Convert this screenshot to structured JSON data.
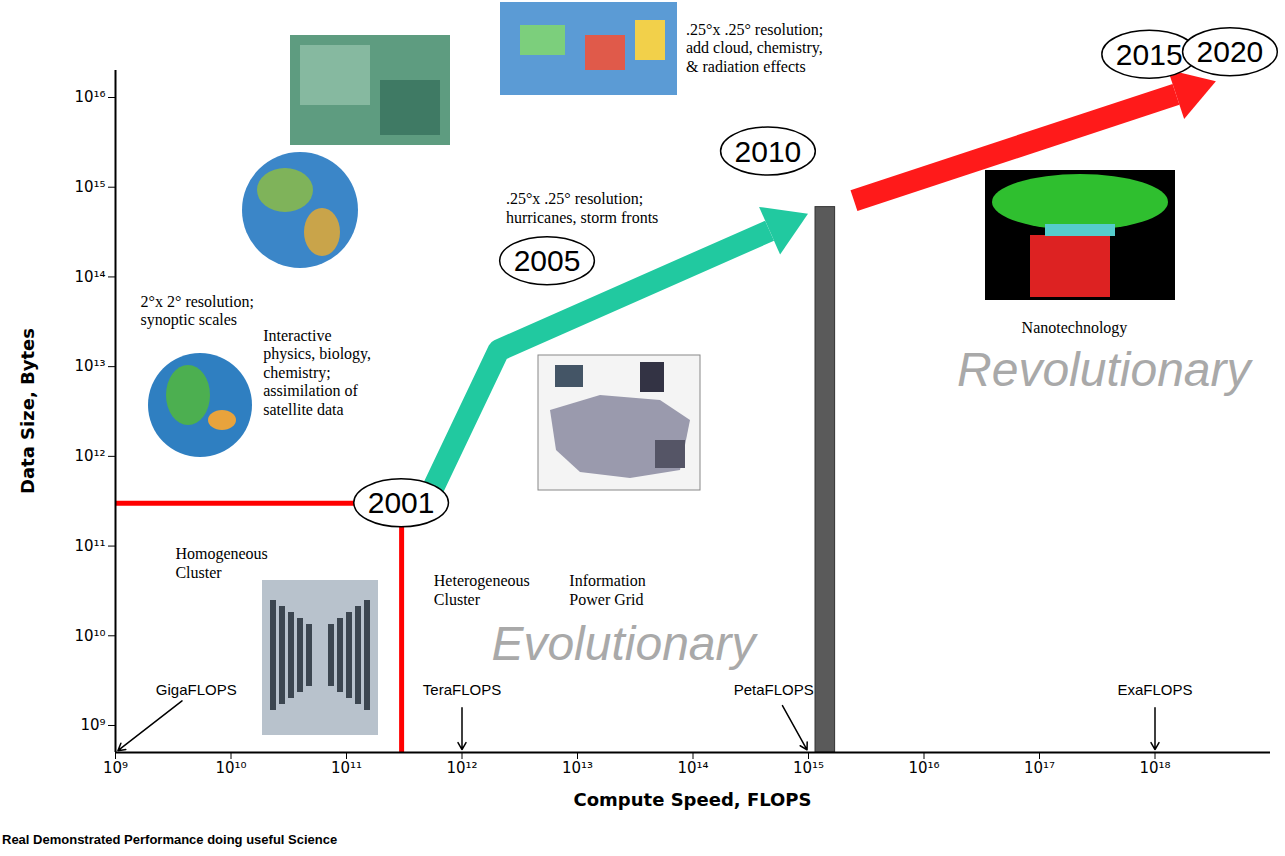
{
  "chart_data": {
    "type": "timeline",
    "x_label": "Compute Speed, FLOPS",
    "y_label": "Data Size, Bytes",
    "caption": "Real Demonstrated Performance doing useful Science",
    "log": true,
    "grid": false,
    "xlim": [
      1000000000.0,
      1e+19
    ],
    "ylim": [
      500000000.0,
      2e+16
    ],
    "xticks": [
      {
        "value": 1000000000.0,
        "label": "10⁹"
      },
      {
        "value": 10000000000.0,
        "label": "10¹⁰"
      },
      {
        "value": 100000000000.0,
        "label": "10¹¹"
      },
      {
        "value": 1000000000000.0,
        "label": "10¹²"
      },
      {
        "value": 10000000000000.0,
        "label": "10¹³"
      },
      {
        "value": 100000000000000.0,
        "label": "10¹⁴"
      },
      {
        "value": 1000000000000000.0,
        "label": "10¹⁵"
      },
      {
        "value": 1e+16,
        "label": "10¹⁶"
      },
      {
        "value": 1e+17,
        "label": "10¹⁷"
      },
      {
        "value": 1e+18,
        "label": "10¹⁸"
      }
    ],
    "yticks": [
      {
        "value": 1000000000.0,
        "label": "10⁹"
      },
      {
        "value": 10000000000.0,
        "label": "10¹⁰"
      },
      {
        "value": 100000000000.0,
        "label": "10¹¹"
      },
      {
        "value": 1000000000000.0,
        "label": "10¹²"
      },
      {
        "value": 10000000000000.0,
        "label": "10¹³"
      },
      {
        "value": 100000000000000.0,
        "label": "10¹⁴"
      },
      {
        "value": 1000000000000000.0,
        "label": "10¹⁵"
      },
      {
        "value": 1e+16,
        "label": "10¹⁶"
      }
    ],
    "milestones": [
      {
        "label": "2001",
        "x": 300000000000.0,
        "y": 300000000000.0
      },
      {
        "label": "2005",
        "x": 5500000000000.0,
        "y": 150000000000000.0
      },
      {
        "label": "2010",
        "x": 450000000000000.0,
        "y": 2500000000000000.0
      },
      {
        "label": "2015",
        "x": 9e+17,
        "y": 3e+16
      },
      {
        "label": "2020",
        "x": 4.5e+18,
        "y": 3.2e+16
      }
    ],
    "cluster_limit": {
      "x": 300000000000.0,
      "y": 300000000000.0,
      "color": "#ff0000"
    },
    "trends": [
      {
        "color": "#21c9a0",
        "points": [
          {
            "x": 550000000000.0,
            "y": 400000000000.0
          },
          {
            "x": 2100000000000.0,
            "y": 15000000000000.0
          },
          {
            "x": 1000000000000000.0,
            "y": 500000000000000.0
          }
        ]
      },
      {
        "color": "#ff1a1a",
        "points": [
          {
            "x": 2500000000000000.0,
            "y": 700000000000000.0
          },
          {
            "x": 3.4e+18,
            "y": 1.5e+16
          }
        ]
      }
    ],
    "barrier": {
      "x1": 1150000000000000.0,
      "x2": 1700000000000000.0,
      "y1": 500000000.0,
      "y2": 600000000000000.0,
      "color": "#5a5a5a"
    },
    "flops_labels": [
      {
        "text": "GigaFLOPS",
        "value": 1000000000.0,
        "x": 5000000000.0,
        "y": 2500000000.0
      },
      {
        "text": "TeraFLOPS",
        "value": 1000000000000.0,
        "x": 1000000000000.0,
        "y": 2500000000.0
      },
      {
        "text": "PetaFLOPS",
        "value": 1000000000000000.0,
        "x": 500000000000000.0,
        "y": 2500000000.0
      },
      {
        "text": "ExaFLOPS",
        "value": 1e+18,
        "x": 1e+18,
        "y": 2500000000.0
      }
    ],
    "annotations": [
      {
        "text": "2°x 2° resolution;\nsynoptic scales",
        "x": 1650000000.0,
        "y": 65000000000000.0
      },
      {
        "text": "Interactive\nphysics, biology,\nchemistry;\nassimilation of\nsatellite data",
        "x": 19000000000.0,
        "y": 27000000000000.0
      },
      {
        "text": ".25°x .25° resolution;\nhurricanes, storm fronts",
        "x": 2400000000000.0,
        "y": 900000000000000.0
      },
      {
        "text": ".25°x .25° resolution;\nadd cloud, chemistry,\n& radiation effects",
        "x": 87000000000000.0,
        "y": 7e+16
      },
      {
        "text": "Homogeneous\nCluster",
        "x": 3300000000.0,
        "y": 100000000000.0
      },
      {
        "text": "Heterogeneous\nCluster",
        "x": 570000000000.0,
        "y": 50000000000.0
      },
      {
        "text": "Information\nPower Grid",
        "x": 8500000000000.0,
        "y": 50000000000.0
      },
      {
        "text": "Nanotechnology",
        "x": 7e+16,
        "y": 33000000000000.0
      }
    ],
    "regions": [
      {
        "text": "Evolutionary",
        "x": 25000000000000.0,
        "y": 8000000000.0
      },
      {
        "text": "Revolutionary",
        "x": 3.6e+17,
        "y": 9000000000000.0
      }
    ]
  }
}
